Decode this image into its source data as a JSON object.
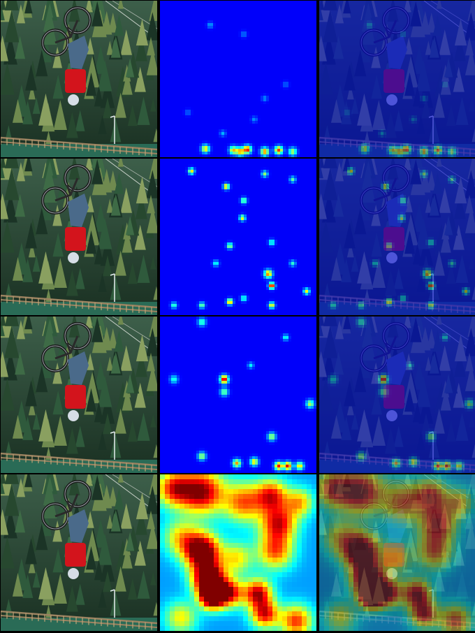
{
  "figure": {
    "rows": [
      {
        "id": "row-1",
        "heatmap_intensity": "low"
      },
      {
        "id": "row-2",
        "heatmap_intensity": "scattered"
      },
      {
        "id": "row-3",
        "heatmap_intensity": "sparse"
      },
      {
        "id": "row-4",
        "heatmap_intensity": "high"
      }
    ],
    "columns": [
      "original-photo",
      "attention-heatmap",
      "heatmap-overlay"
    ],
    "colors": {
      "background": "#000000",
      "heatmap_low": "#00008f",
      "heatmap_mid": "#00ffff",
      "heatmap_high": "#ff0000",
      "forest_dark": "#1b3426",
      "forest_mid": "#2f5a3c",
      "rider_shirt": "#d3141c",
      "railing": "#9b8260"
    }
  }
}
